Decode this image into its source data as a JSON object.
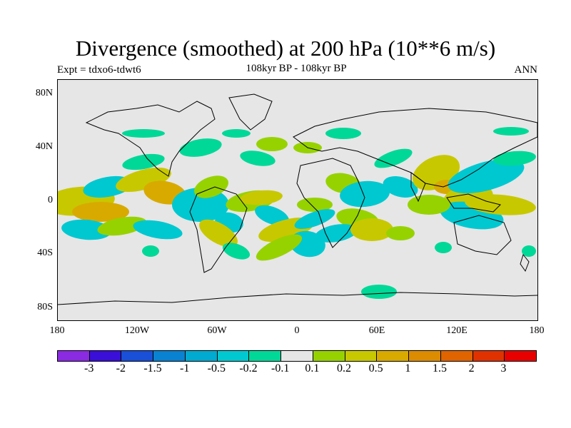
{
  "title": "Divergence (smoothed) at 200 hPa (10**6 m/s)",
  "subtitle_left": "Expt = tdxo6-tdwt6",
  "subtitle_center": "108kyr BP - 108kyr BP",
  "subtitle_right": "ANN",
  "axes": {
    "lat_labels": [
      "80N",
      "40N",
      "0",
      "40S",
      "80S"
    ],
    "lon_labels": [
      "180",
      "120W",
      "60W",
      "0",
      "60E",
      "120E",
      "180"
    ]
  },
  "colorbar": {
    "colors": [
      "#8a2be2",
      "#3a10d8",
      "#1a50d8",
      "#0a82d2",
      "#00aad0",
      "#00c8d0",
      "#00d898",
      "#e6e6e6",
      "#96d200",
      "#c8c800",
      "#d8aa00",
      "#dc8c00",
      "#e06400",
      "#e03200",
      "#e80000"
    ],
    "labels": [
      "-3",
      "-2",
      "-1.5",
      "-1",
      "-0.5",
      "-0.2",
      "-0.1",
      "0.1",
      "0.2",
      "0.5",
      "1",
      "1.5",
      "2",
      "3"
    ]
  },
  "map_colors": {
    "background": "#e6e6e6",
    "neg_small": "#00d898",
    "neg_mid": "#00c8d0",
    "pos_small": "#96d200",
    "pos_mid": "#c8c800",
    "pos_high": "#d8aa00",
    "coast": "#000000"
  }
}
